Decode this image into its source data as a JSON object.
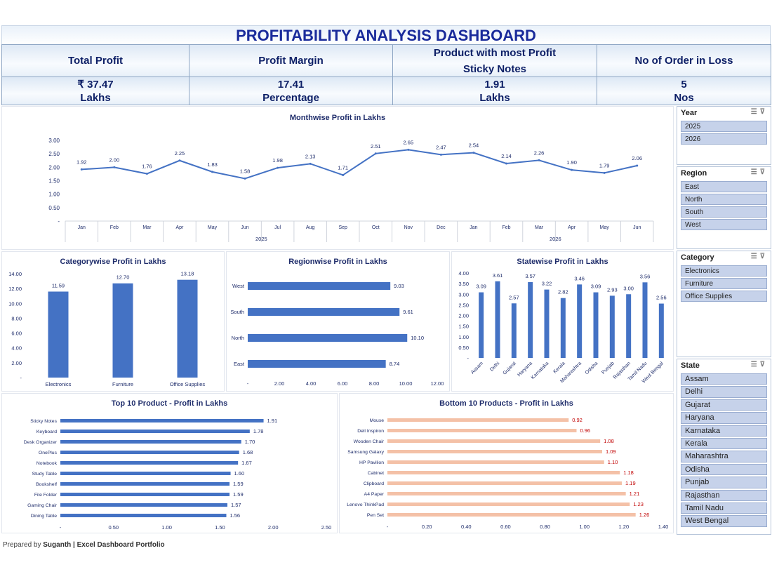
{
  "title": "PROFITABILITY ANALYSIS DASHBOARD",
  "kpis": [
    {
      "label": "Total Profit",
      "label2": "",
      "value": "₹ 37.47",
      "unit": "Lakhs"
    },
    {
      "label": "Profit Margin",
      "label2": "",
      "value": "17.41",
      "unit": "Percentage"
    },
    {
      "label": "Product with most Profit",
      "label2": "Sticky Notes",
      "value": "1.91",
      "unit": "Lakhs"
    },
    {
      "label": "No of Order in Loss",
      "label2": "",
      "value": "5",
      "unit": "Nos"
    }
  ],
  "slicers": {
    "year": {
      "title": "Year",
      "items": [
        "2025",
        "2026"
      ]
    },
    "region": {
      "title": "Region",
      "items": [
        "East",
        "North",
        "South",
        "West"
      ]
    },
    "category": {
      "title": "Category",
      "items": [
        "Electronics",
        "Furniture",
        "Office Supplies"
      ]
    },
    "state": {
      "title": "State",
      "items": [
        "Assam",
        "Delhi",
        "Gujarat",
        "Haryana",
        "Karnataka",
        "Kerala",
        "Maharashtra",
        "Odisha",
        "Punjab",
        "Rajasthan",
        "Tamil Nadu",
        "West Bengal"
      ]
    }
  },
  "footer": {
    "prefix": "Prepared by",
    "author": "Suganth | Excel Dashboard Portfolio"
  },
  "chart_data": [
    {
      "id": "monthwise",
      "type": "line",
      "title": "Monthwise Profit in Lakhs",
      "categories": [
        "Jan",
        "Feb",
        "Mar",
        "Apr",
        "May",
        "Jun",
        "Jul",
        "Aug",
        "Sep",
        "Oct",
        "Nov",
        "Dec",
        "Jan",
        "Feb",
        "Mar",
        "Apr",
        "May",
        "Jun"
      ],
      "groups": [
        {
          "label": "2025",
          "count": 12
        },
        {
          "label": "2026",
          "count": 6
        }
      ],
      "values": [
        1.92,
        2.0,
        1.76,
        2.25,
        1.83,
        1.58,
        1.98,
        2.13,
        1.71,
        2.51,
        2.65,
        2.47,
        2.54,
        2.14,
        2.26,
        1.9,
        1.79,
        2.06
      ],
      "data_labels": [
        "1.92",
        "2.00",
        "1.76",
        "2.25",
        "1.83",
        "1.58",
        "1.98",
        "2.13",
        "1.71",
        "2.51",
        "2.65",
        "2.47",
        "2.54",
        "2.14",
        "2.26",
        "1.90",
        "1.79",
        "2.06"
      ],
      "yticks": [
        "-",
        "0.50",
        "1.00",
        "1.50",
        "2.00",
        "2.50",
        "3.00"
      ],
      "ylim": [
        0,
        3
      ],
      "color": "#4472c4"
    },
    {
      "id": "category",
      "type": "bar",
      "title": "Categorywise Profit in Lakhs",
      "categories": [
        "Electronics",
        "Furniture",
        "Office Supplies"
      ],
      "values": [
        11.59,
        12.7,
        13.18
      ],
      "data_labels": [
        "11.59",
        "12.70",
        "13.18"
      ],
      "yticks": [
        "-",
        "2.00",
        "4.00",
        "6.00",
        "8.00",
        "10.00",
        "12.00",
        "14.00"
      ],
      "ylim": [
        0,
        14
      ],
      "color": "#4472c4"
    },
    {
      "id": "region",
      "type": "bar",
      "orientation": "horizontal",
      "title": "Regionwise Profit in Lakhs",
      "categories": [
        "West",
        "South",
        "North",
        "East"
      ],
      "values": [
        9.03,
        9.61,
        10.1,
        8.74
      ],
      "data_labels": [
        "9.03",
        "9.61",
        "10.10",
        "8.74"
      ],
      "xticks": [
        "-",
        "2.00",
        "4.00",
        "6.00",
        "8.00",
        "10.00",
        "12.00"
      ],
      "xlim": [
        0,
        12
      ],
      "color": "#4472c4"
    },
    {
      "id": "state",
      "type": "bar",
      "title": "Statewise Profit in Lakhs",
      "categories": [
        "Assam",
        "Delhi",
        "Gujarat",
        "Haryana",
        "Karnataka",
        "Kerala",
        "Maharashtra",
        "Odisha",
        "Punjab",
        "Rajasthan",
        "Tamil Nadu",
        "West Bengal"
      ],
      "values": [
        3.09,
        3.61,
        2.57,
        3.57,
        3.22,
        2.82,
        3.46,
        3.09,
        2.93,
        3.0,
        3.56,
        2.56
      ],
      "data_labels": [
        "3.09",
        "3.61",
        "2.57",
        "3.57",
        "3.22",
        "2.82",
        "3.46",
        "3.09",
        "2.93",
        "3.00",
        "3.56",
        "2.56"
      ],
      "yticks": [
        "-",
        "0.50",
        "1.00",
        "1.50",
        "2.00",
        "2.50",
        "3.00",
        "3.50",
        "4.00"
      ],
      "ylim": [
        0,
        4
      ],
      "color": "#4472c4"
    },
    {
      "id": "top10",
      "type": "bar",
      "orientation": "horizontal",
      "title": "Top 10 Product - Profit in Lakhs",
      "categories": [
        "Sticky Notes",
        "Keyboard",
        "Desk Organizer",
        "OnePlus",
        "Notebook",
        "Study Table",
        "Bookshelf",
        "File Folder",
        "Gaming Chair",
        "Dining Table"
      ],
      "values": [
        1.91,
        1.78,
        1.7,
        1.68,
        1.67,
        1.6,
        1.59,
        1.59,
        1.57,
        1.56
      ],
      "data_labels": [
        "1.91",
        "1.78",
        "1.70",
        "1.68",
        "1.67",
        "1.60",
        "1.59",
        "1.59",
        "1.57",
        "1.56"
      ],
      "xticks": [
        "-",
        "0.50",
        "1.00",
        "1.50",
        "2.00",
        "2.50"
      ],
      "xlim": [
        0,
        2.5
      ],
      "color": "#4472c4"
    },
    {
      "id": "bottom10",
      "type": "bar",
      "orientation": "horizontal",
      "title": "Bottom 10 Products - Profit in Lakhs",
      "categories": [
        "Mouse",
        "Dell Inspiron",
        "Wooden Chair",
        "Samsung Galaxy",
        "HP Pavilion",
        "Cabinet",
        "Clipboard",
        "A4 Paper",
        "Lenovo ThinkPad",
        "Pen Set"
      ],
      "values": [
        0.92,
        0.96,
        1.08,
        1.09,
        1.1,
        1.18,
        1.19,
        1.21,
        1.23,
        1.26
      ],
      "data_labels": [
        "0.92",
        "0.96",
        "1.08",
        "1.09",
        "1.10",
        "1.18",
        "1.19",
        "1.21",
        "1.23",
        "1.26"
      ],
      "xticks": [
        "-",
        "0.20",
        "0.40",
        "0.60",
        "0.80",
        "1.00",
        "1.20",
        "1.40"
      ],
      "xlim": [
        0,
        1.4
      ],
      "color": "#f4c1a7",
      "label_color": "#c00000"
    }
  ]
}
